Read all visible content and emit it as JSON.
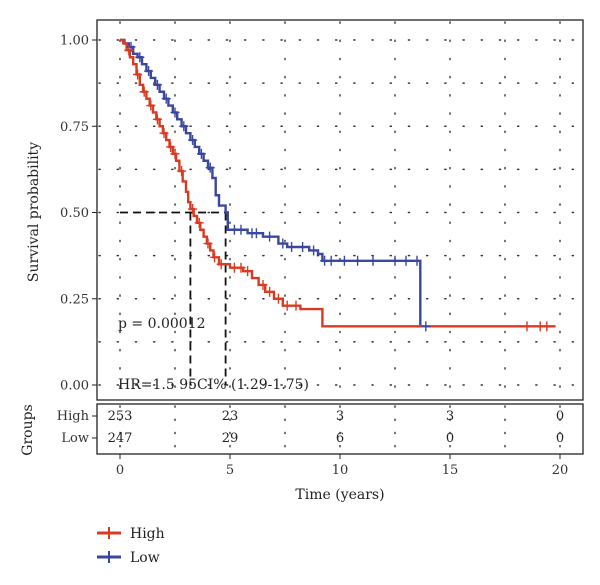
{
  "chart_data": {
    "type": "line",
    "subtype": "kaplan-meier",
    "xlabel": "Time (years)",
    "ylabel": "Survival probability",
    "xlim": [
      0,
      20
    ],
    "ylim": [
      0,
      1
    ],
    "xticks": [
      0,
      5,
      10,
      15,
      20
    ],
    "yticks": [
      "0.00",
      "0.25",
      "0.50",
      "0.75",
      "1.00"
    ],
    "grid": "dotted",
    "annotations": {
      "pvalue": "p = 0.00012",
      "hr": "HR=1.5 95CI% (1.29-1.75)"
    },
    "median_survival": {
      "y": 0.5,
      "Low": 4.8,
      "High": 3.2
    },
    "series": [
      {
        "name": "High",
        "color": "#d93b22",
        "steps": [
          [
            0,
            1.0
          ],
          [
            0.15,
            0.99
          ],
          [
            0.3,
            0.97
          ],
          [
            0.45,
            0.95
          ],
          [
            0.6,
            0.93
          ],
          [
            0.75,
            0.9
          ],
          [
            0.9,
            0.87
          ],
          [
            1.05,
            0.85
          ],
          [
            1.2,
            0.83
          ],
          [
            1.35,
            0.81
          ],
          [
            1.5,
            0.79
          ],
          [
            1.65,
            0.77
          ],
          [
            1.8,
            0.75
          ],
          [
            1.95,
            0.73
          ],
          [
            2.1,
            0.71
          ],
          [
            2.25,
            0.69
          ],
          [
            2.4,
            0.67
          ],
          [
            2.55,
            0.65
          ],
          [
            2.7,
            0.62
          ],
          [
            2.85,
            0.59
          ],
          [
            3.0,
            0.56
          ],
          [
            3.1,
            0.53
          ],
          [
            3.2,
            0.51
          ],
          [
            3.35,
            0.49
          ],
          [
            3.5,
            0.47
          ],
          [
            3.65,
            0.45
          ],
          [
            3.8,
            0.43
          ],
          [
            3.95,
            0.41
          ],
          [
            4.1,
            0.39
          ],
          [
            4.25,
            0.37
          ],
          [
            4.5,
            0.35
          ],
          [
            5.0,
            0.34
          ],
          [
            5.6,
            0.33
          ],
          [
            6.0,
            0.31
          ],
          [
            6.3,
            0.29
          ],
          [
            6.6,
            0.27
          ],
          [
            7.0,
            0.25
          ],
          [
            7.4,
            0.23
          ],
          [
            8.2,
            0.22
          ],
          [
            9.2,
            0.17
          ],
          [
            19.8,
            0.17
          ]
        ],
        "censor_x": [
          0.4,
          0.8,
          1.1,
          1.4,
          1.7,
          2.0,
          2.3,
          2.5,
          2.8,
          3.3,
          3.6,
          4.0,
          4.3,
          4.6,
          5.2,
          5.5,
          5.8,
          6.5,
          6.8,
          7.2,
          7.6,
          8.0,
          18.5,
          19.1,
          19.4
        ]
      },
      {
        "name": "Low",
        "color": "#3a47a0",
        "steps": [
          [
            0,
            1.0
          ],
          [
            0.2,
            0.99
          ],
          [
            0.4,
            0.98
          ],
          [
            0.6,
            0.96
          ],
          [
            0.8,
            0.95
          ],
          [
            1.0,
            0.93
          ],
          [
            1.2,
            0.91
          ],
          [
            1.4,
            0.89
          ],
          [
            1.6,
            0.87
          ],
          [
            1.8,
            0.85
          ],
          [
            2.0,
            0.83
          ],
          [
            2.2,
            0.81
          ],
          [
            2.4,
            0.79
          ],
          [
            2.6,
            0.77
          ],
          [
            2.8,
            0.75
          ],
          [
            3.0,
            0.73
          ],
          [
            3.2,
            0.71
          ],
          [
            3.4,
            0.69
          ],
          [
            3.6,
            0.67
          ],
          [
            3.8,
            0.65
          ],
          [
            4.0,
            0.63
          ],
          [
            4.2,
            0.6
          ],
          [
            4.35,
            0.55
          ],
          [
            4.5,
            0.52
          ],
          [
            4.8,
            0.5
          ],
          [
            4.9,
            0.45
          ],
          [
            5.8,
            0.44
          ],
          [
            6.5,
            0.43
          ],
          [
            7.2,
            0.41
          ],
          [
            7.6,
            0.4
          ],
          [
            8.6,
            0.39
          ],
          [
            9.0,
            0.38
          ],
          [
            9.2,
            0.36
          ],
          [
            13.6,
            0.36
          ],
          [
            13.65,
            0.17
          ]
        ],
        "censor_x": [
          0.5,
          0.9,
          1.3,
          1.7,
          2.1,
          2.5,
          2.9,
          3.3,
          3.7,
          4.1,
          5.2,
          5.5,
          6.0,
          6.2,
          6.8,
          7.4,
          7.8,
          8.3,
          8.8,
          9.3,
          9.6,
          10.2,
          10.8,
          11.5,
          12.5,
          13.0,
          13.5,
          13.9
        ]
      }
    ]
  },
  "risk_table": {
    "title": "Groups",
    "times": [
      0,
      5,
      10,
      15,
      20
    ],
    "rows": [
      {
        "label": "High",
        "values": [
          "253",
          "23",
          "3",
          "3",
          "0"
        ]
      },
      {
        "label": "Low",
        "values": [
          "247",
          "29",
          "6",
          "0",
          "0"
        ]
      }
    ]
  },
  "legend": {
    "items": [
      {
        "label": "High",
        "color": "#d93b22"
      },
      {
        "label": "Low",
        "color": "#3a47a0"
      }
    ]
  }
}
